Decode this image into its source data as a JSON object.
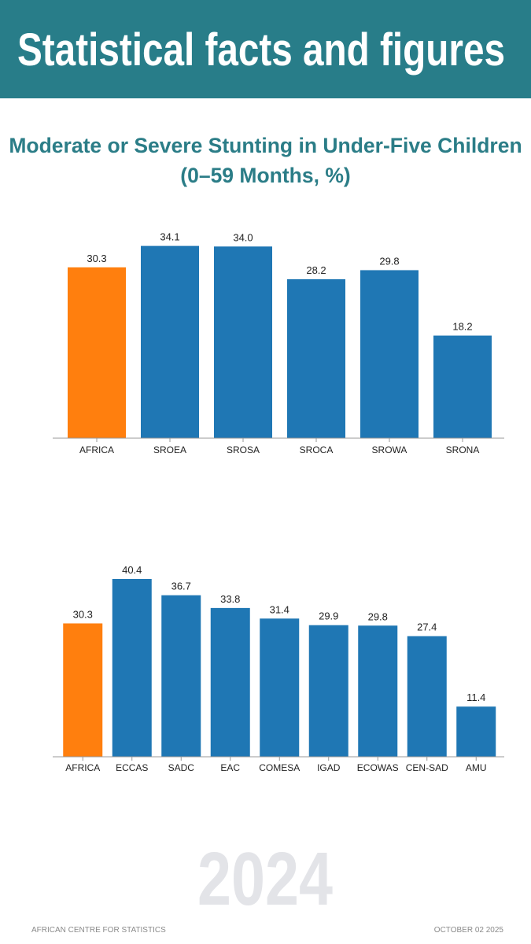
{
  "header": {
    "title": "Statistical facts and figures"
  },
  "chart_data": [
    {
      "type": "bar",
      "title": "Moderate or Severe Stunting in Under-Five Children (0–59 Months, %)",
      "categories": [
        "AFRICA",
        "SROEA",
        "SROSA",
        "SROCA",
        "SROWA",
        "SRONA"
      ],
      "values": [
        30.3,
        34.1,
        34,
        28.2,
        29.8,
        18.2
      ],
      "value_labels": [
        "30.3",
        "34.1",
        "34.0",
        "28.2",
        "29.8",
        "18.2"
      ],
      "colors": [
        "#ff7f0e",
        "#1f77b4",
        "#1f77b4",
        "#1f77b4",
        "#1f77b4",
        "#1f77b4"
      ],
      "ylim": [
        0,
        36
      ]
    },
    {
      "type": "bar",
      "categories": [
        "AFRICA",
        "ECCAS",
        "SADC",
        "EAC",
        "COMESA",
        "IGAD",
        "ECOWAS",
        "CEN-SAD",
        "AMU"
      ],
      "values": [
        30.3,
        40.4,
        36.7,
        33.8,
        31.4,
        29.9,
        29.8,
        27.4,
        11.4
      ],
      "value_labels": [
        "30.3",
        "40.4",
        "36.7",
        "33.8",
        "31.4",
        "29.9",
        "29.8",
        "27.4",
        "11.4"
      ],
      "colors": [
        "#ff7f0e",
        "#1f77b4",
        "#1f77b4",
        "#1f77b4",
        "#1f77b4",
        "#1f77b4",
        "#1f77b4",
        "#1f77b4",
        "#1f77b4"
      ],
      "ylim": [
        0,
        42
      ]
    }
  ],
  "watermark": "2024",
  "footer": {
    "left": "AFRICAN CENTRE FOR STATISTICS",
    "right": "OCTOBER 02 2025"
  }
}
